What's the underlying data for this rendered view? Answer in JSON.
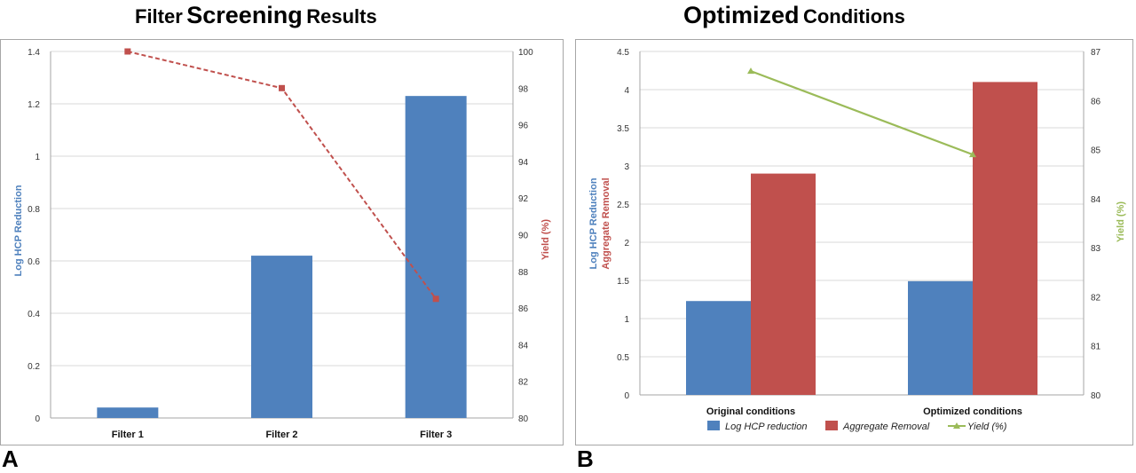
{
  "panel_a": {
    "title_part1": "Filter",
    "title_part2": "Screening",
    "title_part3": "Results",
    "label": "A"
  },
  "panel_b": {
    "title_part1": "Optimized",
    "title_part2": "Conditions",
    "label": "B"
  },
  "colors": {
    "blue": "#4F81BD",
    "red": "#C0504D",
    "green": "#9BBB59",
    "grid": "#d9d9d9",
    "frame": "#a6a6a6"
  },
  "chart_data": [
    {
      "type": "bar",
      "categories": [
        "Filter 1",
        "Filter 2",
        "Filter 3"
      ],
      "series": [
        {
          "name": "",
          "axis": "left",
          "kind": "bar",
          "values": [
            0.04,
            0.62,
            1.23
          ]
        },
        {
          "name": "",
          "axis": "right",
          "kind": "line",
          "style": "dashed",
          "values": [
            100,
            98,
            86.5
          ]
        }
      ],
      "ylabel": "Log HCP Reduction",
      "y2label": "Yield (%)",
      "ylim": [
        0,
        1.4
      ],
      "yticks": [
        "0",
        "0.2",
        "0.4",
        "0.6",
        "0.8",
        "1",
        "1.2",
        "1.4"
      ],
      "y2lim": [
        80,
        100
      ],
      "y2ticks": [
        "80",
        "82",
        "84",
        "86",
        "88",
        "90",
        "92",
        "94",
        "96",
        "98",
        "100"
      ],
      "grid": true
    },
    {
      "type": "bar",
      "categories": [
        "Original conditions",
        "Optimized conditions"
      ],
      "series": [
        {
          "name": "Log HCP reduction",
          "axis": "left",
          "kind": "bar",
          "values": [
            1.23,
            1.49
          ]
        },
        {
          "name": "Aggregate Removal",
          "axis": "left",
          "kind": "bar",
          "values": [
            2.9,
            4.1
          ]
        },
        {
          "name": "Yield (%)",
          "axis": "right",
          "kind": "line",
          "values": [
            86.6,
            84.9
          ]
        }
      ],
      "ylabel_line1": "Log HCP Reduction",
      "ylabel_line2": "Aggregate Removal",
      "y2label": "Yield (%)",
      "ylim": [
        0,
        4.5
      ],
      "yticks": [
        "0",
        "0.5",
        "1",
        "1.5",
        "2",
        "2.5",
        "3",
        "3.5",
        "4",
        "4.5"
      ],
      "y2lim": [
        80,
        87
      ],
      "y2ticks": [
        "80",
        "81",
        "82",
        "83",
        "84",
        "85",
        "86",
        "87"
      ],
      "grid": true,
      "legend": "bottom"
    }
  ]
}
